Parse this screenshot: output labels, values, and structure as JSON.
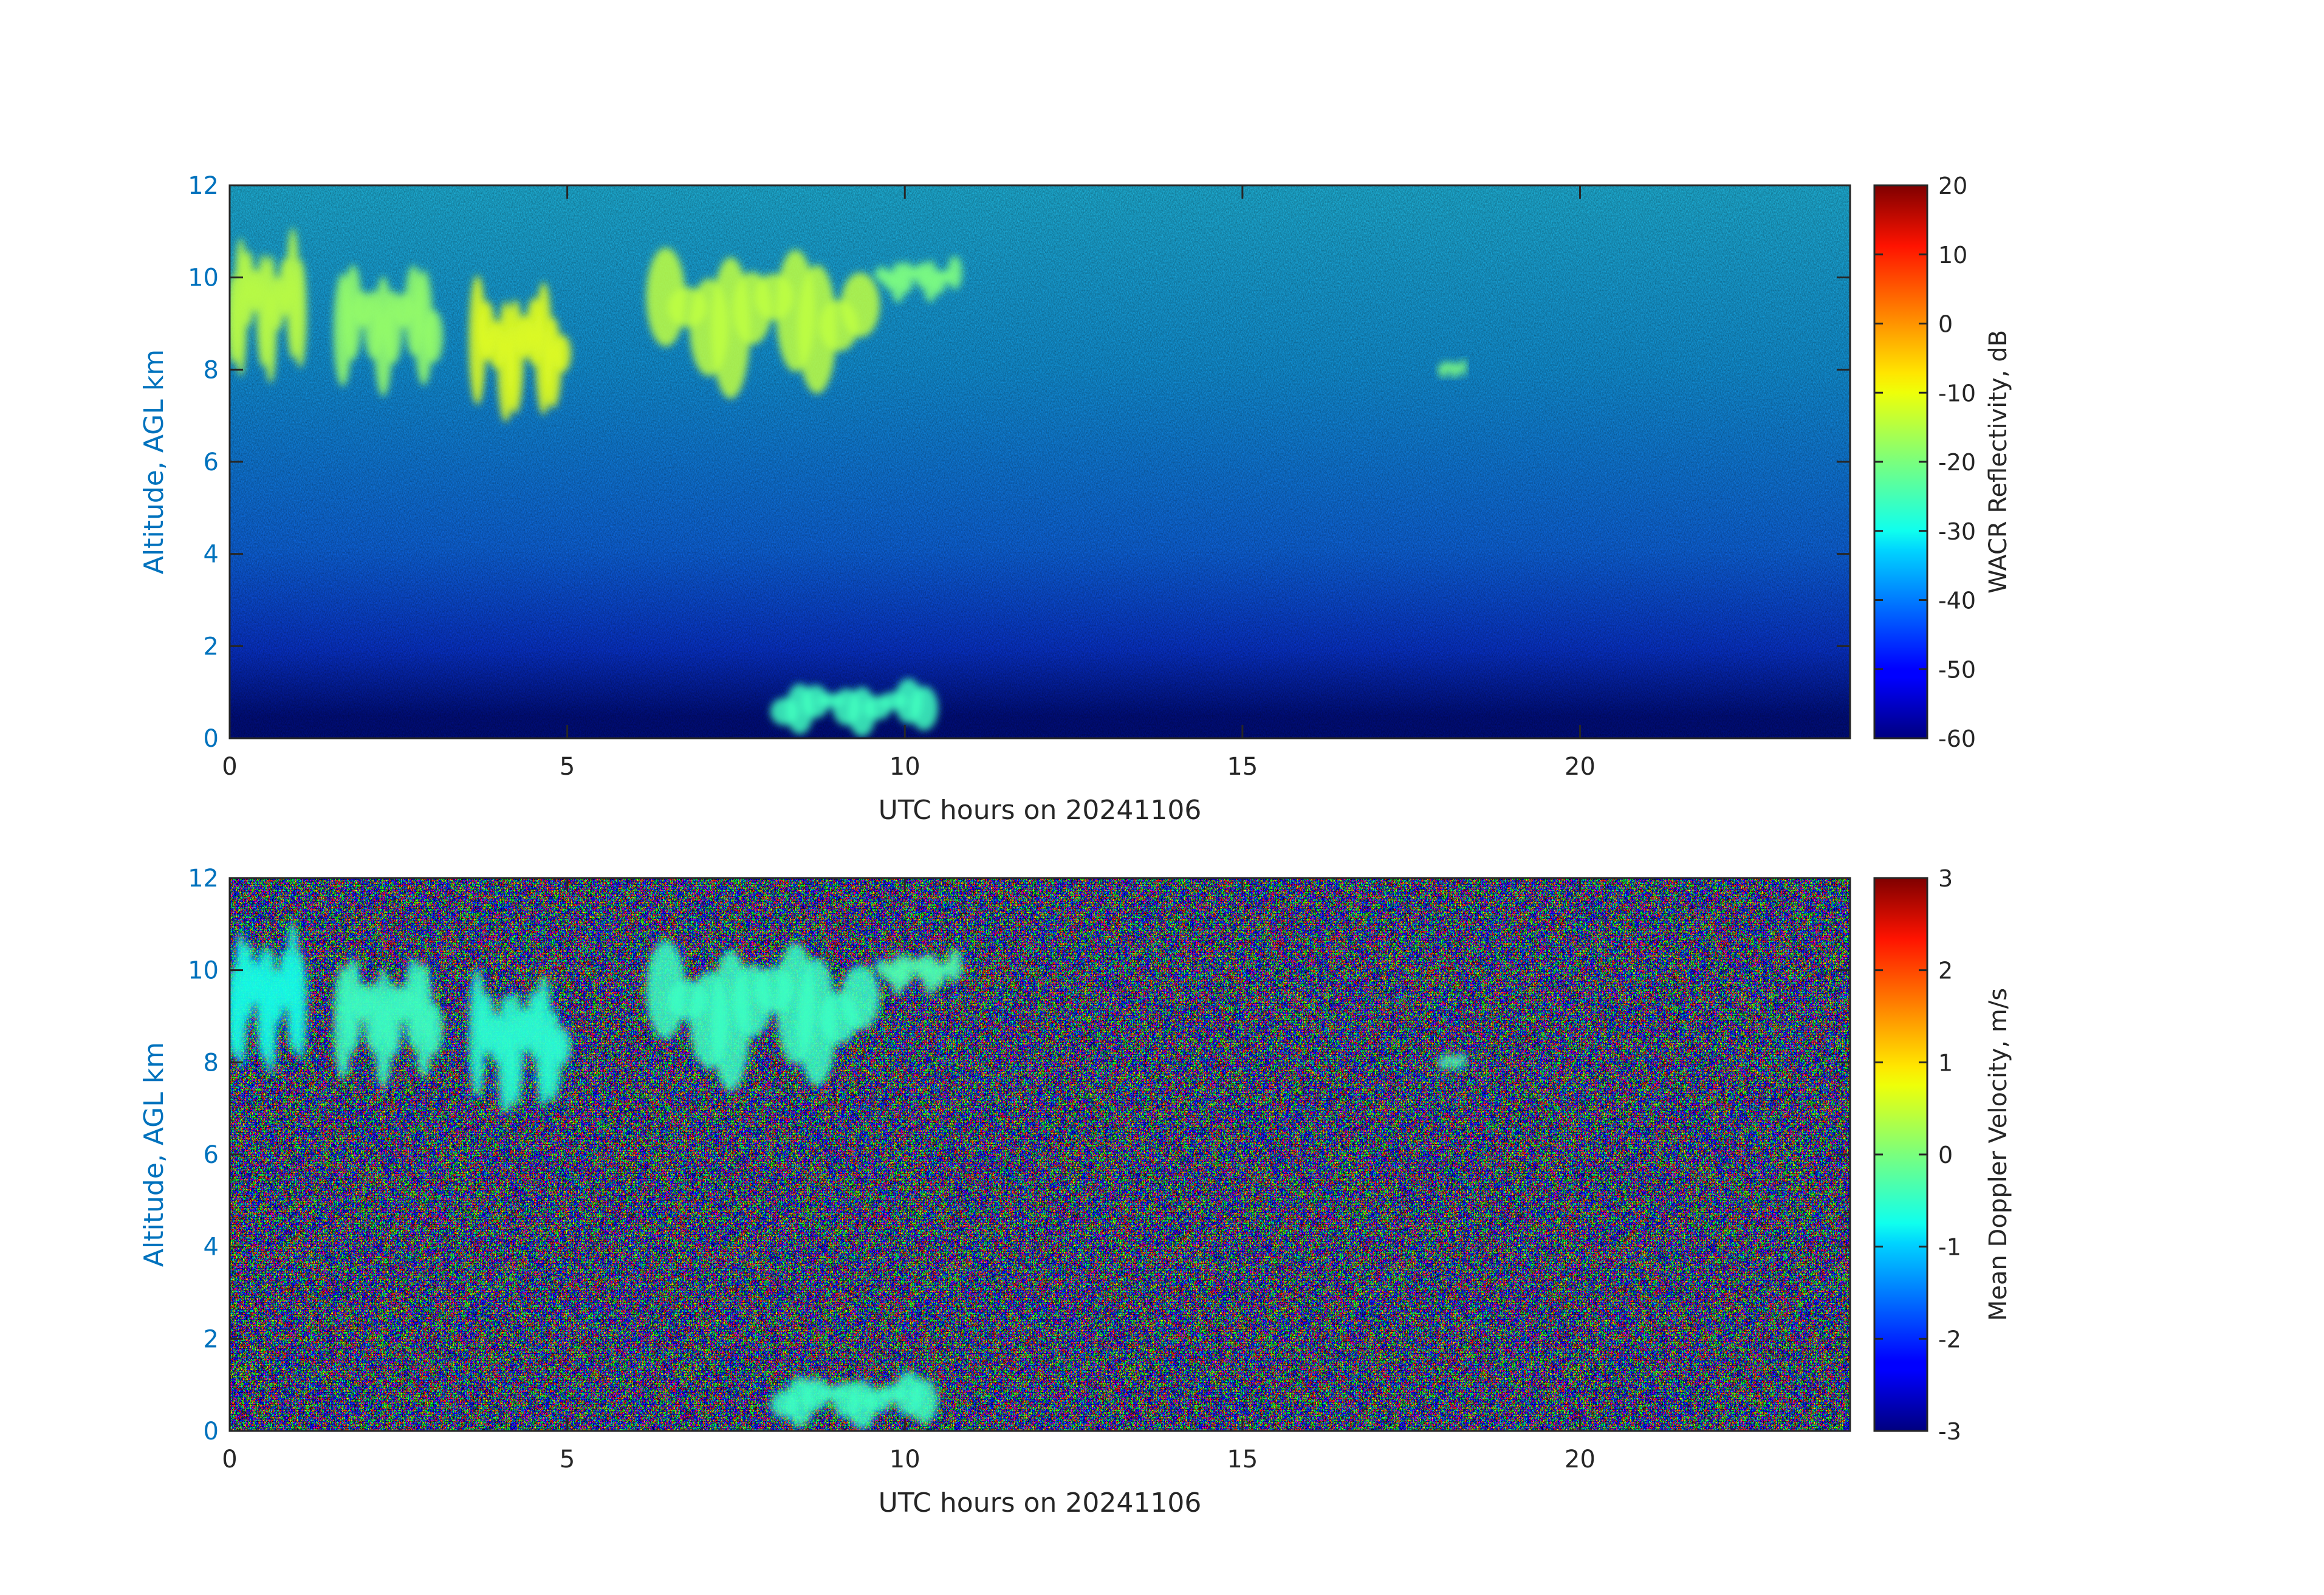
{
  "chart_data": [
    {
      "type": "heatmap",
      "title": "",
      "xlabel": "UTC hours on 20241106",
      "ylabel": "Altitude, AGL km",
      "xlim": [
        0,
        24
      ],
      "ylim": [
        0,
        12
      ],
      "x_ticks": [
        0,
        5,
        10,
        15,
        20
      ],
      "y_ticks": [
        0,
        2,
        4,
        6,
        8,
        10,
        12
      ],
      "colorbar": {
        "label": "WACR Reflectivity, dB",
        "range": [
          -60,
          20
        ],
        "ticks": [
          20,
          10,
          0,
          -10,
          -20,
          -30,
          -40,
          -50,
          -60
        ],
        "colormap": "jet"
      },
      "background_gradient_dB": [
        {
          "altitude_km": 12,
          "value": -32
        },
        {
          "altitude_km": 8,
          "value": -38
        },
        {
          "altitude_km": 4,
          "value": -44
        },
        {
          "altitude_km": 2,
          "value": -50
        },
        {
          "altitude_km": 0.5,
          "value": -58
        }
      ],
      "features": [
        {
          "name": "cirrus",
          "x_range": [
            0,
            1.1
          ],
          "alt_range": [
            7.8,
            10.8
          ],
          "value": -15
        },
        {
          "name": "cirrus",
          "x_range": [
            1.6,
            3.1
          ],
          "alt_range": [
            7.6,
            10.2
          ],
          "value": -18
        },
        {
          "name": "cirrus",
          "x_range": [
            3.6,
            5.0
          ],
          "alt_range": [
            6.9,
            9.8
          ],
          "value": -12
        },
        {
          "name": "cirrus",
          "x_range": [
            6.3,
            9.5
          ],
          "alt_range": [
            7.5,
            10.6
          ],
          "value": -15
        },
        {
          "name": "cirrus",
          "x_range": [
            9.6,
            10.8
          ],
          "alt_range": [
            9.5,
            10.4
          ],
          "value": -20
        },
        {
          "name": "cirrus",
          "x_range": [
            17.9,
            18.3
          ],
          "alt_range": [
            7.8,
            8.2
          ],
          "value": -20
        },
        {
          "name": "low cloud",
          "x_range": [
            8.1,
            10.4
          ],
          "alt_range": [
            0.1,
            1.2
          ],
          "value": -25
        }
      ]
    },
    {
      "type": "heatmap",
      "title": "",
      "xlabel": "UTC hours on 20241106",
      "ylabel": "Altitude, AGL km",
      "xlim": [
        0,
        24
      ],
      "ylim": [
        0,
        12
      ],
      "x_ticks": [
        0,
        5,
        10,
        15,
        20
      ],
      "y_ticks": [
        0,
        2,
        4,
        6,
        8,
        10,
        12
      ],
      "colorbar": {
        "label": "Mean Doppler Velocity, m/s",
        "range": [
          -3,
          3
        ],
        "ticks": [
          3,
          2,
          1,
          0,
          -1,
          -2,
          -3
        ],
        "colormap": "jet"
      },
      "background": "noise",
      "features": [
        {
          "name": "cirrus",
          "x_range": [
            0,
            1.1
          ],
          "alt_range": [
            7.8,
            10.8
          ],
          "value": -0.6
        },
        {
          "name": "cirrus",
          "x_range": [
            1.6,
            3.1
          ],
          "alt_range": [
            7.6,
            10.2
          ],
          "value": -0.4
        },
        {
          "name": "cirrus",
          "x_range": [
            3.6,
            5.0
          ],
          "alt_range": [
            6.9,
            9.8
          ],
          "value": -0.5
        },
        {
          "name": "cirrus",
          "x_range": [
            6.3,
            9.5
          ],
          "alt_range": [
            7.5,
            10.6
          ],
          "value": -0.4
        },
        {
          "name": "cirrus",
          "x_range": [
            9.6,
            10.8
          ],
          "alt_range": [
            9.5,
            10.4
          ],
          "value": -0.3
        },
        {
          "name": "cirrus",
          "x_range": [
            17.9,
            18.3
          ],
          "alt_range": [
            7.8,
            8.2
          ],
          "value": -0.3
        },
        {
          "name": "low cloud",
          "x_range": [
            8.1,
            10.4
          ],
          "alt_range": [
            0.1,
            1.2
          ],
          "value": -0.4
        }
      ]
    }
  ]
}
